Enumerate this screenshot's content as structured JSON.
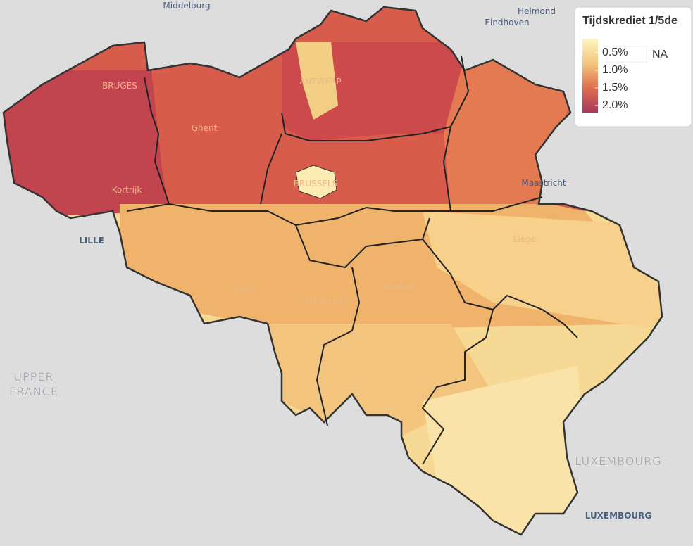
{
  "map": {
    "places": [
      "Middelburg",
      "Helmond",
      "Eindhoven",
      "LILLE",
      "Maastricht",
      "Liège",
      "Mons",
      "CHARLEROI",
      "NAMUR",
      "Ghent",
      "Kortrijk",
      "BRUGES",
      "ANTWERP",
      "BRUSSELS"
    ],
    "countries": [
      "UPPER",
      "FRANCE",
      "LUXEMBOURG",
      "LUXEMBOURG"
    ]
  },
  "legend": {
    "title": "Tijdskrediet 1/5de",
    "ticks": [
      {
        "value": 0.5,
        "label": "0.5%"
      },
      {
        "value": 1.0,
        "label": "1.0%"
      },
      {
        "value": 1.5,
        "label": "1.5%"
      },
      {
        "value": 2.0,
        "label": "2.0%"
      }
    ],
    "na": "NA"
  }
}
